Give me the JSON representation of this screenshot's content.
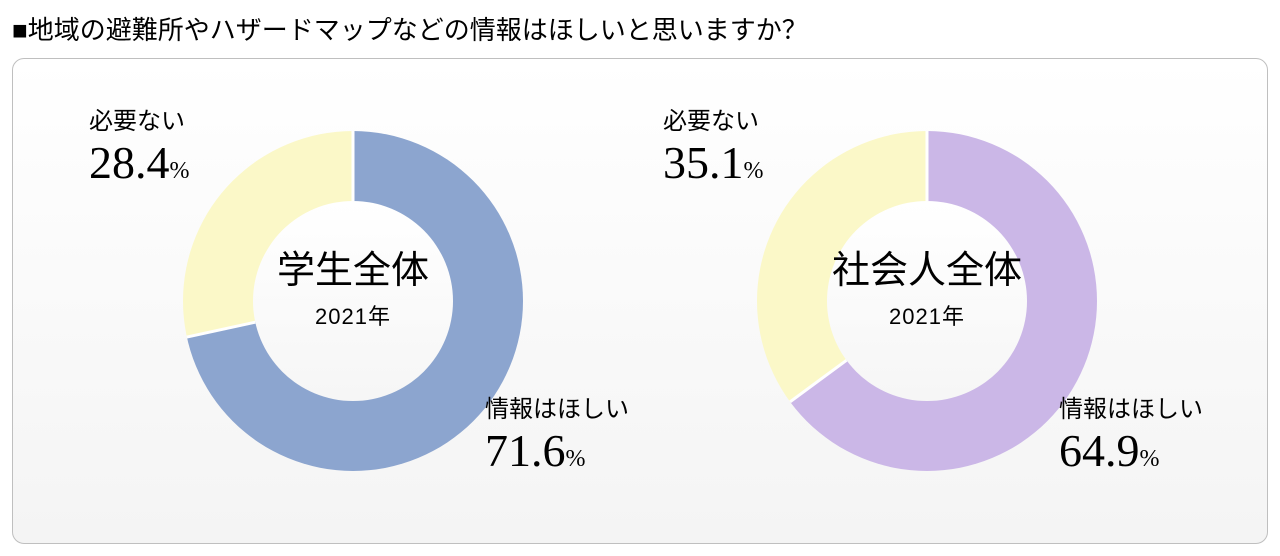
{
  "title_prefix": "■",
  "title_text": "地域の避難所やハザードマップなどの情報はほしいと思いますか？",
  "background_color": "#ffffff",
  "panel_border_color": "#bfbfbf",
  "panel_gradient_top": "#ffffff",
  "panel_gradient_bottom": "#f4f4f4",
  "text_color": "#000000",
  "divider_color": "#ffffff",
  "title_fontsize": 26,
  "center_title_fontsize": 38,
  "center_year_fontsize": 22,
  "label_name_fontsize": 24,
  "label_value_fontsize": 46,
  "label_unit_fontsize": 24,
  "donut_outer_diameter": 340,
  "donut_ring_thickness": 70,
  "charts": [
    {
      "type": "donut",
      "center_label": "学生全体",
      "year": "2021年",
      "slices": [
        {
          "label": "情報はほしい",
          "value": 71.6,
          "value_display": "71.6",
          "unit": "%",
          "color": "#8ca5cf"
        },
        {
          "label": "必要ない",
          "value": 28.4,
          "value_display": "28.4",
          "unit": "%",
          "color": "#fbf8c8"
        }
      ]
    },
    {
      "type": "donut",
      "center_label": "社会人全体",
      "year": "2021年",
      "slices": [
        {
          "label": "情報はほしい",
          "value": 64.9,
          "value_display": "64.9",
          "unit": "%",
          "color": "#cbb7e7"
        },
        {
          "label": "必要ない",
          "value": 35.1,
          "value_display": "35.1",
          "unit": "%",
          "color": "#fbf8c8"
        }
      ]
    }
  ]
}
